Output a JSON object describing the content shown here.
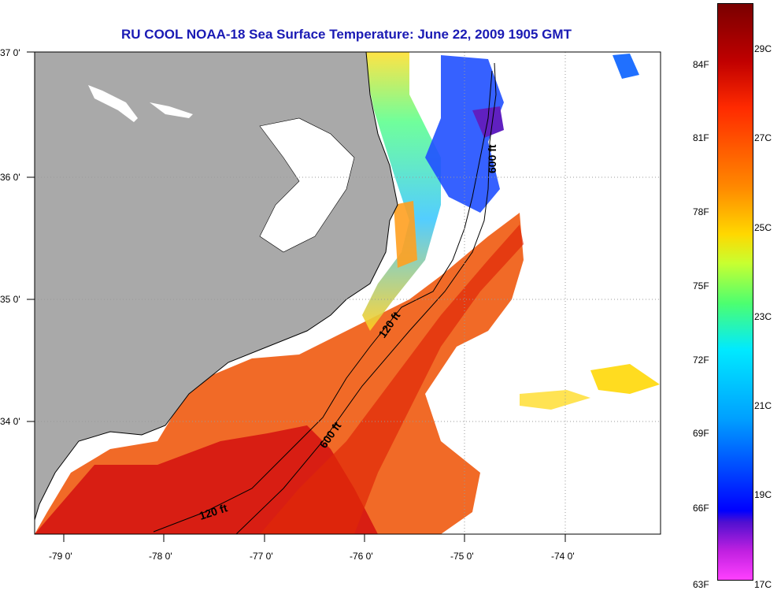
{
  "title": "RU COOL  NOAA-18  Sea Surface Temperature:  June 22, 2009 1905 GMT",
  "latitude_labels": [
    "37 0'",
    "36 0'",
    "35 0'",
    "34 0'"
  ],
  "longitude_labels": [
    "-79 0'",
    "-78 0'",
    "-77 0'",
    "-76 0'",
    "-75 0'",
    "-74 0'"
  ],
  "isobaths": [
    "600 ft",
    "120 ft",
    "600 ft",
    "120 ft"
  ],
  "colorbar": {
    "fahrenheit": [
      "84F",
      "81F",
      "78F",
      "75F",
      "72F",
      "69F",
      "66F",
      "63F"
    ],
    "celsius": [
      "29C",
      "27C",
      "25C",
      "23C",
      "21C",
      "19C",
      "17C"
    ]
  },
  "colors": {
    "land": "#a9a9a9",
    "title": "#1a1ab4",
    "warm": "#e83a10",
    "cool": "#2060ff"
  }
}
